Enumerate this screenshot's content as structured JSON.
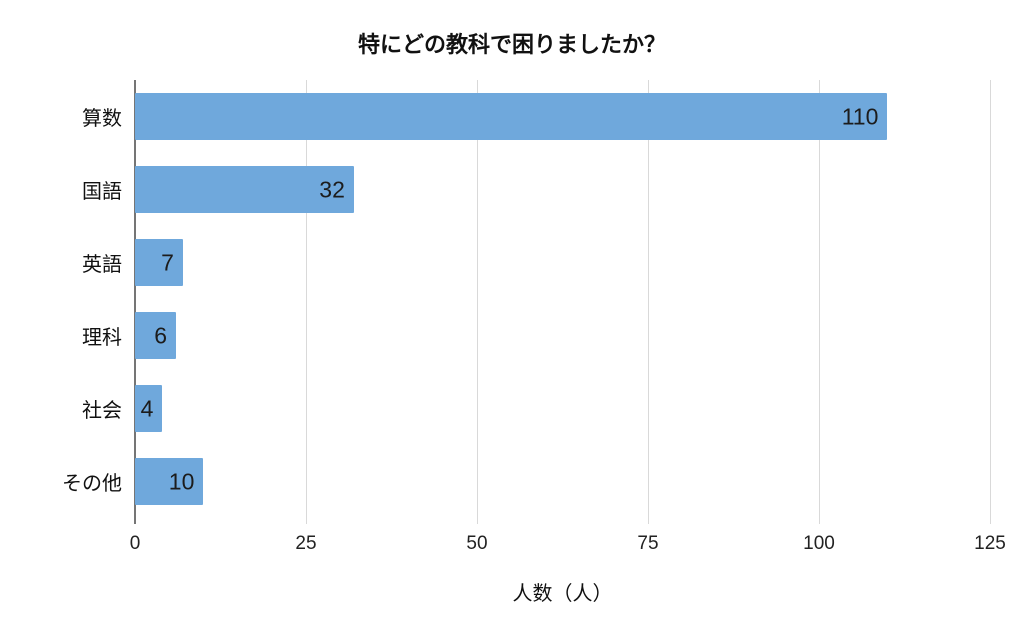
{
  "chart_data": {
    "type": "bar",
    "orientation": "horizontal",
    "title": "特にどの教科で困りましたか？",
    "categories": [
      "算数",
      "国語",
      "英語",
      "理科",
      "社会",
      "その他"
    ],
    "values": [
      110,
      32,
      7,
      6,
      4,
      10
    ],
    "xlabel": "人数（人）",
    "xlim": [
      0,
      125
    ],
    "xticks": [
      0,
      25,
      50,
      75,
      100,
      125
    ],
    "grid": true,
    "legend": false,
    "colors": {
      "bar": "#6fa8dc",
      "value_label": "#1c1c1c",
      "gridline": "#d9d9d9",
      "axis_line": "#757575",
      "text": "#111111",
      "background": "#ffffff"
    }
  }
}
